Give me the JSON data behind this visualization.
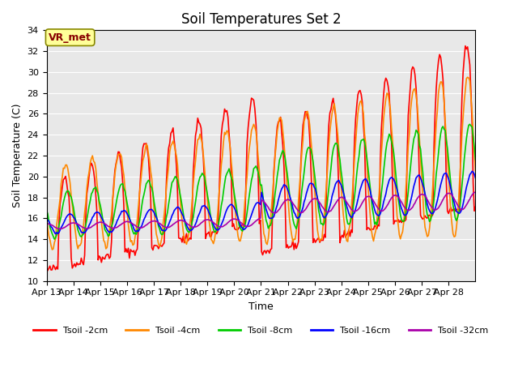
{
  "title": "Soil Temperatures Set 2",
  "xlabel": "Time",
  "ylabel": "Soil Temperature (C)",
  "ylim": [
    10,
    34
  ],
  "yticks": [
    10,
    12,
    14,
    16,
    18,
    20,
    22,
    24,
    26,
    28,
    30,
    32,
    34
  ],
  "x_labels": [
    "Apr 13",
    "Apr 14",
    "Apr 15",
    "Apr 16",
    "Apr 17",
    "Apr 18",
    "Apr 19",
    "Apr 20",
    "Apr 21",
    "Apr 22",
    "Apr 23",
    "Apr 24",
    "Apr 25",
    "Apr 26",
    "Apr 27",
    "Apr 28"
  ],
  "colors": {
    "Tsoil -2cm": "#ff0000",
    "Tsoil -4cm": "#ff8800",
    "Tsoil -8cm": "#00cc00",
    "Tsoil -16cm": "#0000ff",
    "Tsoil -32cm": "#aa00aa"
  },
  "bg_color": "#e8e8e8",
  "annotation_text": "VR_met",
  "annotation_bg": "#ffff99",
  "annotation_border": "#888800",
  "annotation_text_color": "#880000"
}
